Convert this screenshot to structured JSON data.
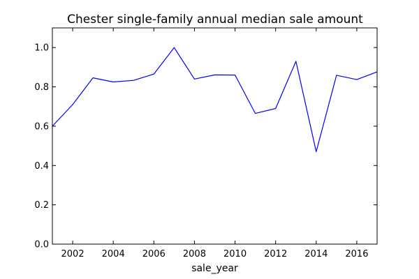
{
  "chart_data": {
    "type": "line",
    "title": "Chester single-family annual median sale amount",
    "xlabel": "sale_year",
    "ylabel": "",
    "xlim": [
      2001,
      2017
    ],
    "ylim": [
      0.0,
      1.1
    ],
    "xticks": [
      2002,
      2004,
      2006,
      2008,
      2010,
      2012,
      2014,
      2016
    ],
    "xtick_labels": [
      "2002",
      "2004",
      "2006",
      "2008",
      "2010",
      "2012",
      "2014",
      "2016"
    ],
    "yticks": [
      0.0,
      0.2,
      0.4,
      0.6,
      0.8,
      1.0
    ],
    "ytick_labels": [
      "0.0",
      "0.2",
      "0.4",
      "0.6",
      "0.8",
      "1.0"
    ],
    "grid": false,
    "series": [
      {
        "color": "#0000ff",
        "x": [
          2001,
          2002,
          2003,
          2004,
          2005,
          2006,
          2007,
          2008,
          2009,
          2010,
          2011,
          2012,
          2013,
          2014,
          2015,
          2016,
          2017
        ],
        "y": [
          0.6,
          0.71,
          0.846,
          0.825,
          0.833,
          0.865,
          1.0,
          0.84,
          0.861,
          0.86,
          0.665,
          0.69,
          0.93,
          0.47,
          0.859,
          0.837,
          0.876
        ]
      }
    ]
  }
}
